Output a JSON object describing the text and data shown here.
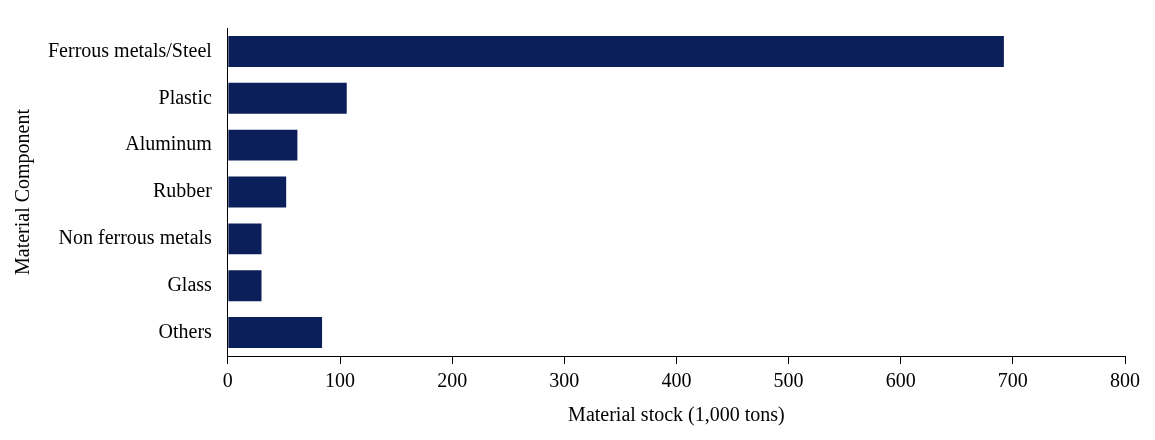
{
  "chart_data": {
    "type": "bar",
    "orientation": "horizontal",
    "xlabel": "Material stock (1,000 tons)",
    "ylabel": "Material Component",
    "categories": [
      "Ferrous metals/Steel",
      "Plastic",
      "Aluminum",
      "Rubber",
      "Non ferrous metals",
      "Glass",
      "Others"
    ],
    "values": [
      692,
      106,
      62,
      52,
      30,
      30,
      84
    ],
    "color": "#0b1f5b",
    "xlim": [
      0,
      800
    ],
    "xticks": [
      0,
      100,
      200,
      300,
      400,
      500,
      600,
      700,
      800
    ],
    "grid": false,
    "legend": false
  }
}
